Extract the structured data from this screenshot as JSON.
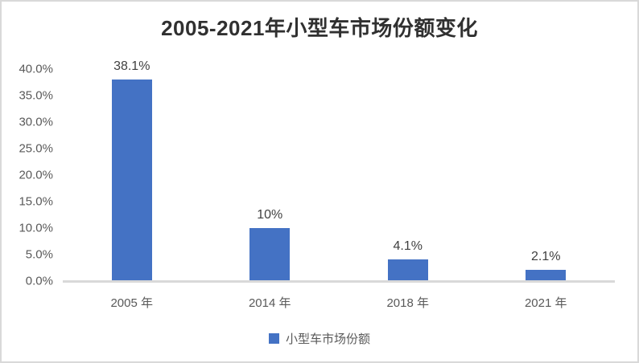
{
  "chart_data": {
    "type": "bar",
    "title": "2005-2021年小型车市场份额变化",
    "categories": [
      "2005 年",
      "2014 年",
      "2018 年",
      "2021 年"
    ],
    "values": [
      38.1,
      10,
      4.1,
      2.1
    ],
    "data_labels": [
      "38.1%",
      "10%",
      "4.1%",
      "2.1%"
    ],
    "series_name": "小型车市场份额",
    "xlabel": "",
    "ylabel": "",
    "ylim": [
      0,
      40
    ],
    "ytick_step": 5,
    "yticks": [
      "0.0%",
      "5.0%",
      "10.0%",
      "15.0%",
      "20.0%",
      "25.0%",
      "30.0%",
      "35.0%",
      "40.0%"
    ],
    "grid": false,
    "legend_position": "bottom",
    "bar_color": "#4472c4"
  },
  "colors": {
    "bar": "#4472c4",
    "title_text": "#303030",
    "axis_text": "#595959",
    "data_label_text": "#3f3f3f",
    "axis_line": "#d9d9d9",
    "frame_border": "#d9d9d9",
    "background": "#ffffff"
  }
}
